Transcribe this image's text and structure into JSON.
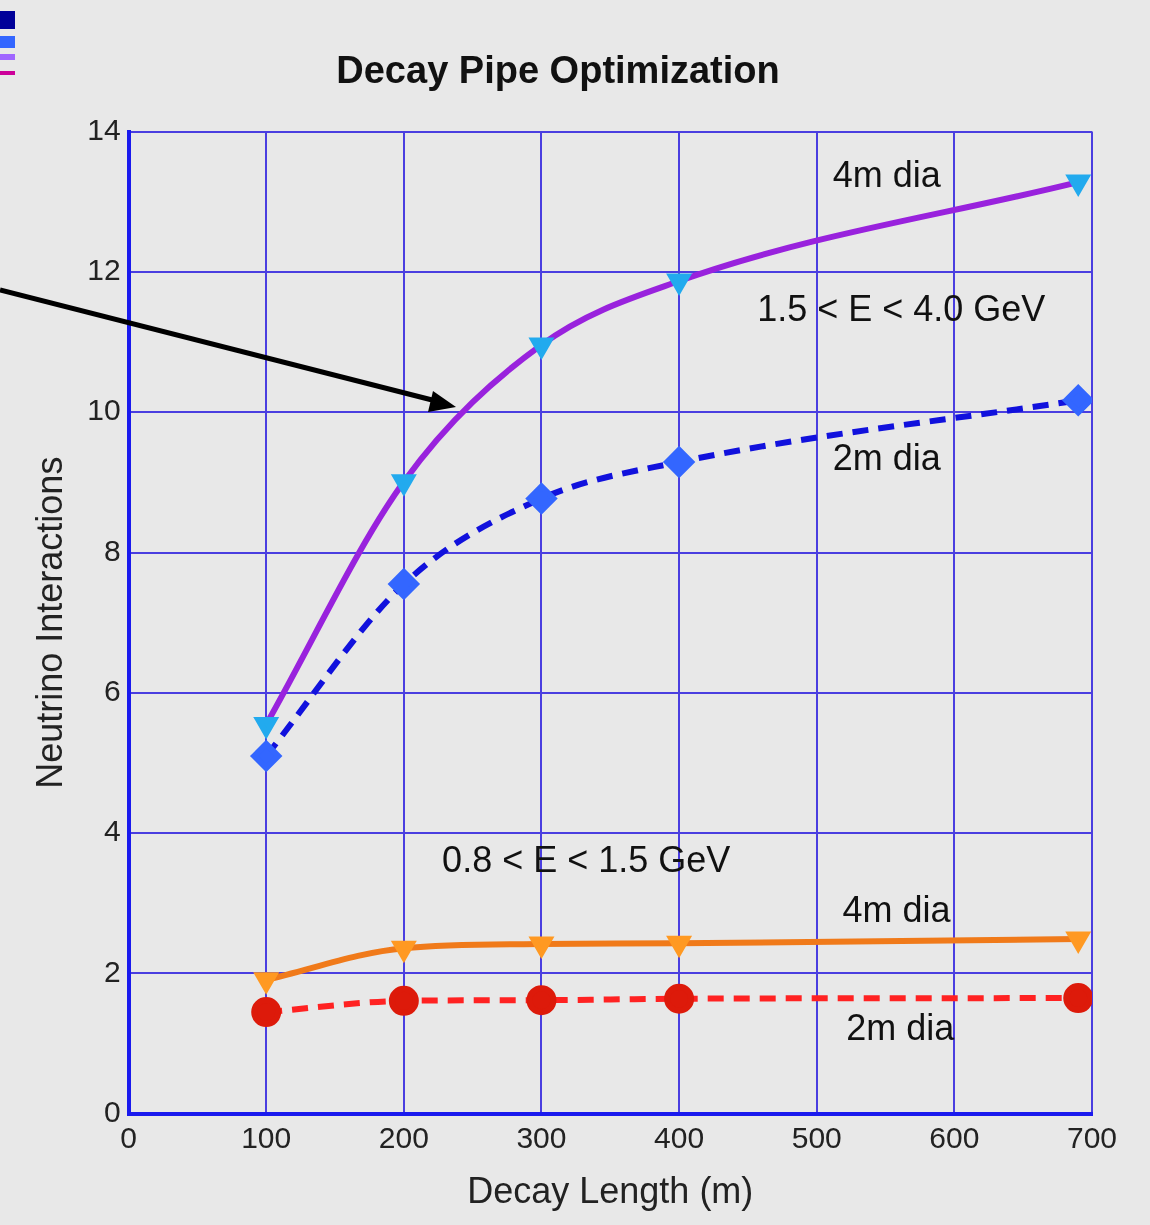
{
  "chart_data": {
    "type": "line",
    "title": "Decay Pipe Optimization",
    "xlabel": "Decay Length (m)",
    "ylabel": "Neutrino Interactions",
    "x": [
      100,
      200,
      300,
      400,
      690
    ],
    "series": [
      {
        "color": "#9922dd",
        "colors": [
          "#22aaee",
          "#22aaee",
          "#22aaee",
          "#22aaee",
          "#22aaee"
        ],
        "marker": "triangle",
        "line_style": "solid",
        "values": [
          5.55,
          9.01,
          10.96,
          11.87,
          13.28
        ]
      },
      {
        "color": "#1111dd",
        "colors": [
          "#3366ff",
          "#3366ff",
          "#3366ff",
          "#3366ff",
          "#3366ff"
        ],
        "marker": "diamond",
        "line_style": "dashed",
        "values": [
          5.1,
          7.55,
          8.77,
          9.29,
          10.17
        ]
      },
      {
        "color": "#f07a1a",
        "colors": [
          "#ff9922",
          "#ff9922",
          "#ff9922",
          "#ff9922",
          "#ff9922"
        ],
        "marker": "triangle",
        "line_style": "solid",
        "values": [
          1.91,
          2.36,
          2.42,
          2.43,
          2.49
        ]
      },
      {
        "color": "#ff2222",
        "colors": [
          "#dd1a0a",
          "#dd1a0a",
          "#dd1a0a",
          "#dd1a0a",
          "#dd1a0a"
        ],
        "marker": "circle",
        "line_style": "dashed",
        "values": [
          1.45,
          1.61,
          1.62,
          1.64,
          1.65
        ]
      }
    ],
    "xlim": [
      0,
      700
    ],
    "xticks": [
      0,
      100,
      200,
      300,
      400,
      500,
      600,
      700
    ],
    "ylim": [
      0,
      14
    ],
    "yticks": [
      0,
      2,
      4,
      6,
      8,
      10,
      12,
      14
    ],
    "grid": true,
    "legend": false,
    "annotations": [
      "4m dia",
      "1.5 < E < 4.0 GeV",
      "2m dia",
      "0.8 < E < 1.5 GeV",
      "4m dia",
      "2m dia"
    ]
  }
}
